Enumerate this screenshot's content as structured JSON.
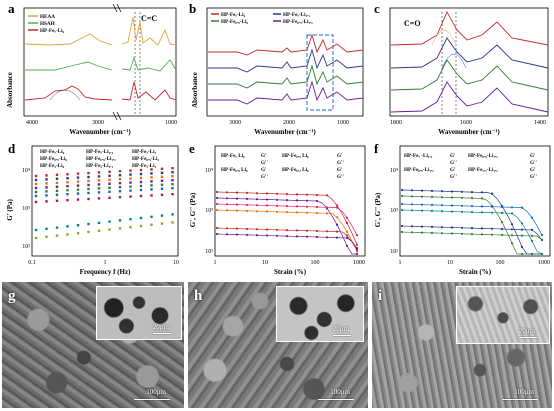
{
  "panels": {
    "a": {
      "label": "a",
      "ylabel": "Absorbance",
      "xlabel": "Wavenumber (cm⁻¹)",
      "annotation": "C=C",
      "xticks": [
        "4000",
        "3000",
        "1000"
      ],
      "legend": [
        "HEAA",
        "HSAH",
        "HP-Fe₇-Li₆"
      ],
      "colors": [
        "#e8a040",
        "#4caf50",
        "#c62828"
      ]
    },
    "b": {
      "label": "b",
      "ylabel": "Absorbance",
      "xlabel": "Wavenumber (cm⁻¹)",
      "xticks": [
        "3000",
        "2000",
        "1000"
      ],
      "legend": [
        "HP-Fe₇-Li₆",
        "HP-Fe₇-Li₁.₁",
        "HP-Fe₀.₉-Li₆",
        "HP-Fe₀.₉-Li₁.₁"
      ],
      "colors": [
        "#c62828",
        "#283593",
        "#2e7d32",
        "#6a1b9a"
      ]
    },
    "c": {
      "label": "c",
      "annotation": "C=O",
      "xlabel": "Wavenumber (cm⁻¹)",
      "xticks": [
        "1800",
        "1600",
        "1400"
      ],
      "colors": [
        "#c62828",
        "#283593",
        "#2e7d32",
        "#6a1b9a"
      ]
    },
    "d": {
      "label": "d",
      "ylabel": "G' (Pa)",
      "xlabel": "Frequency f (Hz)",
      "xticks": [
        "0.1",
        "1",
        "10"
      ],
      "yticks": [
        "10²",
        "10³",
        "10⁴"
      ],
      "legend": [
        "HP-Fe₇-Li₆",
        "HP-Fe₇-Li₁.₁",
        "HP-Fe₇-Li₂",
        "HP-Fe₀.₉-Li₆",
        "HP-Fe₀.₉-Li₁.₁",
        "HP-Fe₀.₉-Li₂",
        "HP-Fe₁-Li₆",
        "HP-Fe₁-Li₁.₁",
        "HP-Fe₁-Li₂"
      ],
      "colors": [
        "#c62828",
        "#283593",
        "#ef6c00",
        "#6a1b9a",
        "#2e7d32",
        "#1565c0",
        "#ad1457",
        "#00838f",
        "#9e9d24"
      ]
    },
    "e": {
      "label": "e",
      "ylabel": "G', G'' (Pa)",
      "xlabel": "Strain (%)",
      "xticks": [
        "1",
        "10",
        "100",
        "1000"
      ],
      "yticks": [
        "10²",
        "10³",
        "10⁴"
      ],
      "legend": [
        "HP-Fe₇ Li₆",
        "G'",
        "HP-Fe₀.₉ Li₆",
        "G'",
        "G''",
        "G''",
        "HP-Fe₀.₉ Li₆",
        "G'",
        "HP-Fe₀.₂ Li₆",
        "G'",
        "G''",
        "G''"
      ],
      "colors": [
        "#c62828",
        "#6a1b9a",
        "#e91e63",
        "#ef6c00"
      ]
    },
    "f": {
      "label": "f",
      "ylabel": "G', G'' (Pa)",
      "xlabel": "Strain (%)",
      "xticks": [
        "1",
        "10",
        "100",
        "1000"
      ],
      "yticks": [
        "10²",
        "10³",
        "10⁴"
      ],
      "legend": [
        "HP-Fe₇ -Li₁.₁",
        "G'",
        "HP-Fe₀.₉-Li₁.₁",
        "G'",
        "G''",
        "G''",
        "HP-Fe₀.₉-Li₁.₁",
        "G'",
        "HP-Fe₁.₁-Li₁.₁",
        "G'",
        "G''",
        "G''"
      ],
      "colors": [
        "#283593",
        "#2e7d32",
        "#1565c0",
        "#00897b"
      ]
    },
    "g": {
      "label": "g",
      "inset_scale": "20μm",
      "scale": "100μm"
    },
    "h": {
      "label": "h",
      "inset_scale": "20μm",
      "scale": "100μm"
    },
    "i": {
      "label": "i",
      "inset_scale": "20μm",
      "scale": "100μm"
    }
  }
}
